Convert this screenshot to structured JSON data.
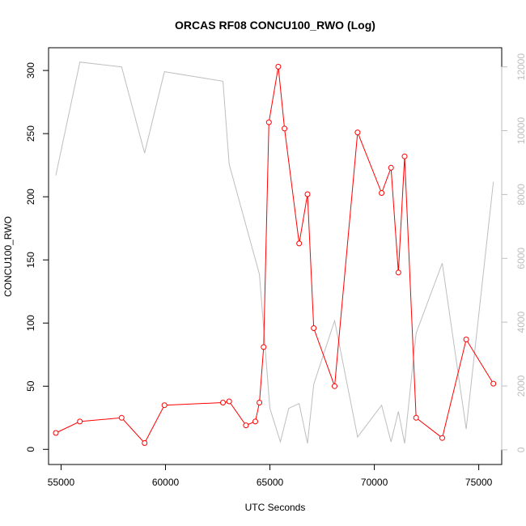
{
  "chart_data": {
    "type": "line",
    "title": "ORCAS RF08 CONCU100_RWO (Log)",
    "xlabel": "UTC Seconds",
    "ylabel": "CONCU100_RWO",
    "xlim": [
      54400,
      76100
    ],
    "ylim": [
      -12,
      318
    ],
    "y2lim": [
      -460,
      12600
    ],
    "x_ticks": [
      55000,
      60000,
      65000,
      70000,
      75000
    ],
    "y_ticks": [
      0,
      50,
      100,
      150,
      200,
      250,
      300
    ],
    "y2_ticks": [
      0,
      2000,
      4000,
      6000,
      8000,
      10000,
      12000
    ],
    "series": [
      {
        "color": "#ff0000",
        "marker": "open-circle",
        "axis": "left",
        "x": [
          54750,
          55900,
          57900,
          59000,
          59950,
          62750,
          63050,
          63850,
          64300,
          64500,
          64700,
          64950,
          65400,
          65700,
          66400,
          66800,
          67100,
          68100,
          69200,
          70350,
          70800,
          71150,
          71450,
          72000,
          73250,
          74400,
          75700
        ],
        "y": [
          13,
          22,
          25,
          5,
          35,
          37,
          38,
          19,
          22,
          37,
          81,
          259,
          303,
          254,
          163,
          202,
          96,
          50,
          251,
          203,
          223,
          140,
          232,
          25,
          9,
          87,
          52
        ]
      },
      {
        "color": "#bebebe",
        "marker": "none",
        "axis": "right",
        "x": [
          54750,
          55900,
          57900,
          59000,
          59950,
          62750,
          63050,
          64500,
          65000,
          65500,
          65900,
          66400,
          66800,
          67100,
          68100,
          69200,
          70350,
          70800,
          71150,
          71450,
          72000,
          73250,
          74400,
          75700
        ],
        "y": [
          8600,
          12150,
          12000,
          9300,
          11850,
          11550,
          8950,
          5500,
          1300,
          250,
          1300,
          1450,
          200,
          2050,
          4050,
          400,
          1400,
          250,
          1200,
          200,
          3650,
          5850,
          650,
          8400
        ]
      }
    ]
  }
}
